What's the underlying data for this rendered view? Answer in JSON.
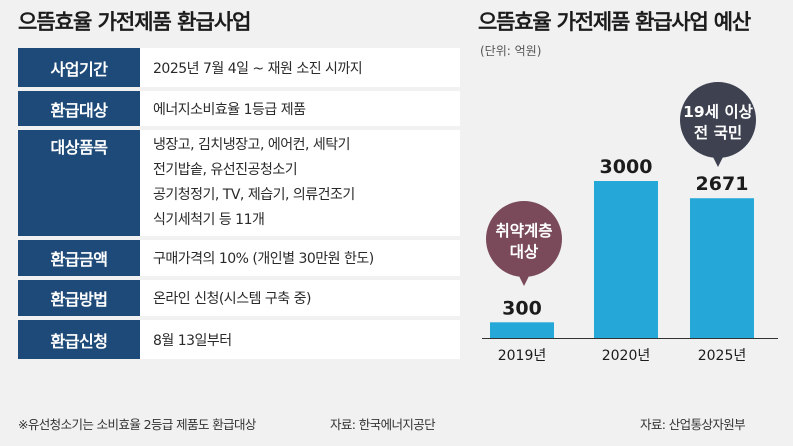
{
  "left": {
    "title": "으뜸효율 가전제품 환급사업",
    "rows": [
      {
        "label": "사업기간",
        "lines": [
          "2025년 7월 4일 ~ 재원 소진 시까지"
        ]
      },
      {
        "label": "환급대상",
        "lines": [
          "에너지소비효율 1등급 제품"
        ]
      },
      {
        "label": "대상품목",
        "lines": [
          "냉장고, 김치냉장고, 에어컨, 세탁기",
          "전기밥솥, 유선진공청소기",
          "공기청정기, TV, 제습기, 의류건조기",
          "식기세척기 등 11개"
        ]
      },
      {
        "label": "환급금액",
        "lines": [
          "구매가격의 10% (개인별 30만원 한도)"
        ]
      },
      {
        "label": "환급방법",
        "lines": [
          "온라인 신청(시스템 구축 중)"
        ]
      },
      {
        "label": "환급신청",
        "lines": [
          "8월 13일부터"
        ]
      }
    ],
    "note": "※유선청소기는 소비효율 2등급 제품도 환급대상",
    "source": "자료: 한국에너지공단"
  },
  "right": {
    "title": "으뜸효율 가전제품 환급사업 예산",
    "unit": "(단위: 억원)",
    "source": "자료: 산업통상자원부"
  },
  "chart_data": {
    "type": "bar",
    "categories": [
      "2019년",
      "2020년",
      "2025년"
    ],
    "values": [
      300,
      3000,
      2671
    ],
    "ylim": [
      0,
      3000
    ],
    "bar_color": "#25a8d8",
    "annotations": [
      {
        "category": "2019년",
        "lines": [
          "취약계층",
          "대상"
        ],
        "color": "#7a4a5a"
      },
      {
        "category": "2025년",
        "lines": [
          "19세 이상",
          "전 국민"
        ],
        "color": "#3d4150"
      }
    ]
  },
  "colors": {
    "label_bg": "#1d4a78",
    "bar": "#25a8d8",
    "background": "#f1f1f2"
  }
}
